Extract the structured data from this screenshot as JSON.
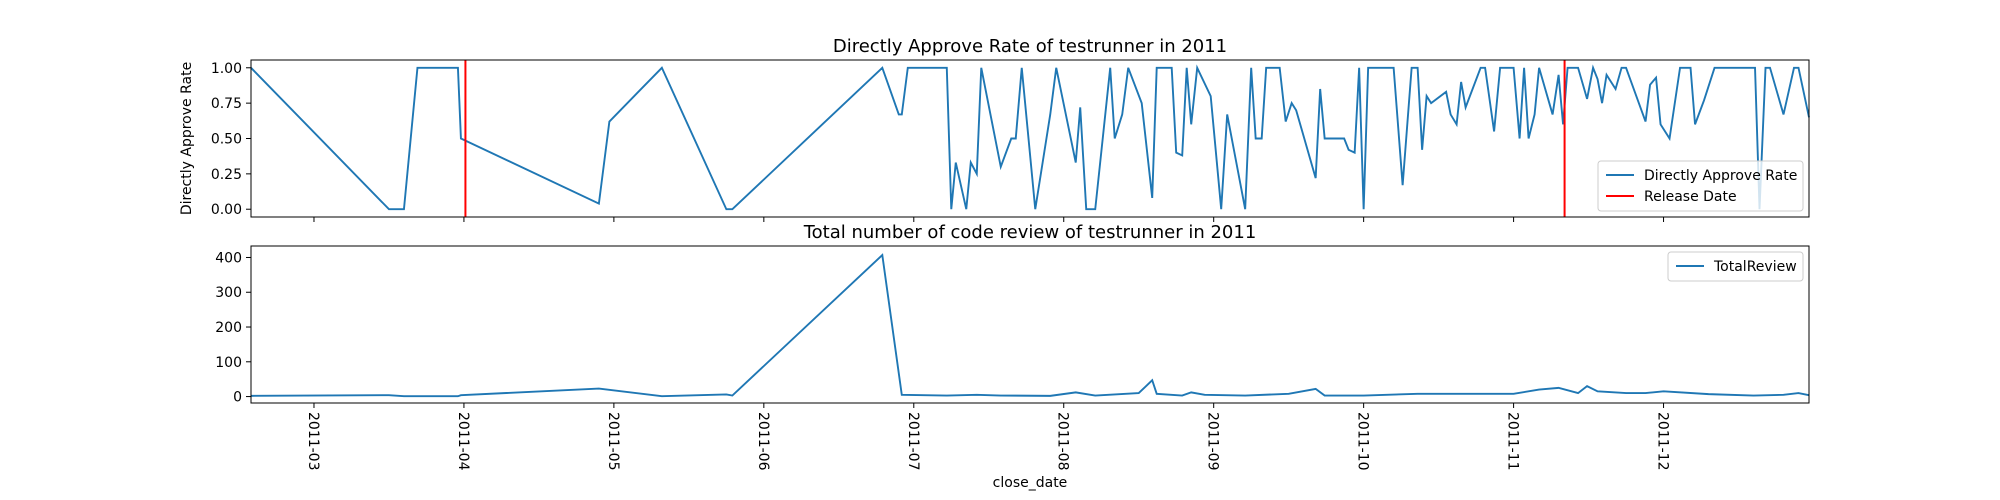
{
  "chart_data": [
    {
      "type": "line",
      "title": "Directly Approve Rate of testrunner in 2011",
      "y_label": "Directly Approve Rate",
      "x": [
        2.58,
        3.5,
        3.6,
        3.69,
        3.96,
        3.98,
        4.9,
        4.97,
        5.32,
        5.75,
        5.79,
        6.79,
        6.9,
        6.92,
        6.96,
        7.22,
        7.25,
        7.28,
        7.35,
        7.38,
        7.42,
        7.45,
        7.58,
        7.65,
        7.68,
        7.72,
        7.81,
        7.91,
        7.95,
        8.08,
        8.11,
        8.15,
        8.21,
        8.31,
        8.34,
        8.39,
        8.43,
        8.52,
        8.59,
        8.62,
        8.72,
        8.75,
        8.79,
        8.82,
        8.85,
        8.89,
        8.98,
        9.05,
        9.09,
        9.21,
        9.25,
        9.28,
        9.32,
        9.35,
        9.44,
        9.48,
        9.52,
        9.55,
        9.68,
        9.71,
        9.74,
        9.87,
        9.9,
        9.94,
        9.97,
        10.0,
        10.03,
        10.2,
        10.26,
        10.32,
        10.36,
        10.39,
        10.42,
        10.45,
        10.55,
        10.58,
        10.62,
        10.65,
        10.68,
        10.78,
        10.81,
        10.87,
        10.91,
        11.0,
        11.04,
        11.07,
        11.1,
        11.14,
        11.17,
        11.26,
        11.3,
        11.33,
        11.36,
        11.43,
        11.49,
        11.53,
        11.56,
        11.59,
        11.62,
        11.68,
        11.72,
        11.75,
        11.88,
        11.91,
        11.95,
        11.98,
        12.04,
        12.11,
        12.18,
        12.21,
        12.27,
        12.34,
        12.61,
        12.64,
        12.68,
        12.71,
        12.8,
        12.87,
        12.9,
        12.97
      ],
      "series": [
        {
          "name": "Directly Approve Rate",
          "color": "#1f77b4",
          "values": [
            1.0,
            0,
            0,
            1.0,
            1.0,
            0.5,
            0.04,
            0.62,
            1.0,
            0,
            0,
            1.0,
            0.67,
            0.67,
            1.0,
            1.0,
            0,
            0.33,
            0,
            0.33,
            0.25,
            1.0,
            0.3,
            0.5,
            0.5,
            1.0,
            0,
            0.67,
            1.0,
            0.33,
            0.72,
            0,
            0,
            1.0,
            0.5,
            0.67,
            1.0,
            0.75,
            0.08,
            1.0,
            1.0,
            0.4,
            0.38,
            1.0,
            0.6,
            1.0,
            0.8,
            0,
            0.67,
            0,
            1.0,
            0.5,
            0.5,
            1.0,
            1.0,
            0.62,
            0.75,
            0.7,
            0.22,
            0.85,
            0.5,
            0.5,
            0.42,
            0.4,
            1.0,
            0,
            1.0,
            1.0,
            0.17,
            1.0,
            1.0,
            0.42,
            0.8,
            0.75,
            0.83,
            0.67,
            0.6,
            0.9,
            0.72,
            1.0,
            1.0,
            0.55,
            1.0,
            1.0,
            0.5,
            1.0,
            0.5,
            0.67,
            1.0,
            0.67,
            0.95,
            0.6,
            1.0,
            1.0,
            0.78,
            1.0,
            0.92,
            0.75,
            0.95,
            0.85,
            1.0,
            1.0,
            0.62,
            0.88,
            0.93,
            0.6,
            0.5,
            1.0,
            1.0,
            0.6,
            0.77,
            1.0,
            1.0,
            0,
            1.0,
            1.0,
            0.67,
            1.0,
            1.0,
            0.65
          ]
        }
      ],
      "vlines": {
        "name": "Release Date",
        "color": "#ff0000",
        "x": [
          4.01,
          11.34
        ]
      },
      "xlim": [
        2.58,
        12.97
      ],
      "xticks": [
        3,
        4,
        5,
        6,
        7,
        8,
        9,
        10,
        11,
        12
      ],
      "ylim": [
        -0.055,
        1.055
      ],
      "yticks": [
        {
          "value": 0,
          "label": "0.00"
        },
        {
          "value": 0.25,
          "label": "0.25"
        },
        {
          "value": 0.5,
          "label": "0.50"
        },
        {
          "value": 0.75,
          "label": "0.75"
        },
        {
          "value": 1,
          "label": "1.00"
        }
      ],
      "legend": "lower right"
    },
    {
      "type": "line",
      "title": "Total number of code review of testrunner in 2011",
      "x_label": "close_date",
      "x": [
        2.58,
        3.5,
        3.6,
        3.96,
        3.98,
        4.9,
        5.32,
        5.75,
        5.79,
        6.79,
        6.92,
        7.22,
        7.42,
        7.58,
        7.91,
        8.08,
        8.21,
        8.5,
        8.59,
        8.62,
        8.79,
        8.85,
        8.94,
        9.21,
        9.5,
        9.68,
        9.74,
        10.0,
        10.36,
        10.5,
        10.68,
        11.0,
        11.17,
        11.3,
        11.43,
        11.49,
        11.56,
        11.75,
        11.88,
        12.0,
        12.3,
        12.6,
        12.8,
        12.9,
        12.97
      ],
      "series": [
        {
          "name": "TotalReview",
          "color": "#1f77b4",
          "values": [
            2,
            4,
            1,
            1,
            4,
            23,
            1,
            6,
            3,
            407,
            5,
            3,
            5,
            3,
            2,
            12,
            3,
            10,
            47,
            8,
            3,
            12,
            5,
            3,
            8,
            22,
            3,
            3,
            8,
            8,
            8,
            8,
            20,
            25,
            10,
            30,
            15,
            10,
            10,
            15,
            7,
            3,
            5,
            10,
            4
          ]
        }
      ],
      "xlim": [
        2.58,
        12.97
      ],
      "xticks": [
        {
          "value": 3,
          "label": "2011-03"
        },
        {
          "value": 4,
          "label": "2011-04"
        },
        {
          "value": 5,
          "label": "2011-05"
        },
        {
          "value": 6,
          "label": "2011-06"
        },
        {
          "value": 7,
          "label": "2011-07"
        },
        {
          "value": 8,
          "label": "2011-08"
        },
        {
          "value": 9,
          "label": "2011-09"
        },
        {
          "value": 10,
          "label": "2011-10"
        },
        {
          "value": 11,
          "label": "2011-11"
        },
        {
          "value": 12,
          "label": "2011-12"
        }
      ],
      "ylim": [
        -18.5,
        433
      ],
      "yticks": [
        0,
        100,
        200,
        300,
        400
      ],
      "legend": "upper right"
    }
  ]
}
